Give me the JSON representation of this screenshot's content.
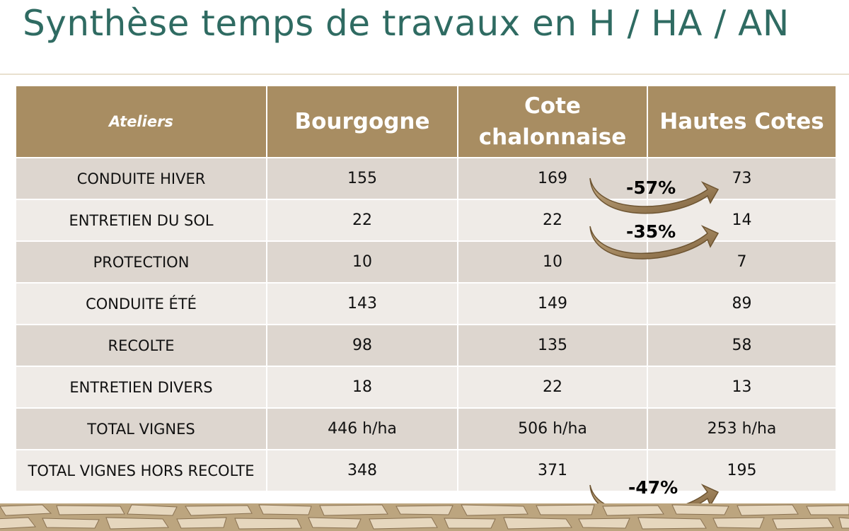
{
  "title": "Synthèse temps de travaux en H / HA / AN",
  "table": {
    "headers": [
      "Ateliers",
      "Bourgogne",
      "Cote chalonnaise",
      "Hautes Cotes"
    ],
    "rows": [
      [
        "CONDUITE HIVER",
        "155",
        "169",
        "73"
      ],
      [
        "ENTRETIEN DU SOL",
        "22",
        "22",
        "14"
      ],
      [
        "PROTECTION",
        "10",
        "10",
        "7"
      ],
      [
        "CONDUITE ÉTÉ",
        "143",
        "149",
        "89"
      ],
      [
        "RECOLTE",
        "98",
        "135",
        "58"
      ],
      [
        "ENTRETIEN DIVERS",
        "18",
        "22",
        "13"
      ],
      [
        "TOTAL VIGNES",
        "446 h/ha",
        "506 h/ha",
        "253 h/ha"
      ],
      [
        "TOTAL VIGNES HORS RECOLTE",
        "348",
        "371",
        "195"
      ]
    ]
  },
  "annotations": [
    {
      "label": "-57%",
      "row": "CONDUITE HIVER"
    },
    {
      "label": "-35%",
      "row": "ENTRETIEN DU SOL"
    },
    {
      "label": "-47%",
      "row": "TOTAL VIGNES HORS RECOLTE"
    }
  ],
  "colors": {
    "title": "#2f6b62",
    "header_bg": "#a88d62",
    "row_dark": "#ddd6cf",
    "row_light": "#efebe7",
    "arrow": "#8b6d45"
  }
}
